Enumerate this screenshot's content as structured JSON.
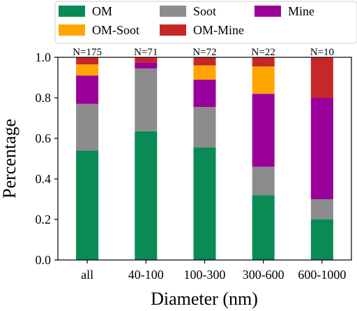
{
  "chart_data": {
    "type": "bar",
    "stacked": true,
    "title": "",
    "xlabel": "Diameter (nm)",
    "ylabel": "Percentage",
    "ylim": [
      0,
      1.0
    ],
    "yticks": [
      "0.0",
      "0.2",
      "0.4",
      "0.6",
      "0.8",
      "1.0"
    ],
    "grid": false,
    "legend_position": "top",
    "categories": [
      "all",
      "40-100",
      "100-300",
      "300-600",
      "600-1000"
    ],
    "counts": [
      "N=175",
      "N=71",
      "N=72",
      "N=22",
      "N=10"
    ],
    "series": [
      {
        "name": "OM",
        "color": "#0a8a55",
        "values": [
          0.54,
          0.635,
          0.555,
          0.32,
          0.2
        ]
      },
      {
        "name": "Soot",
        "color": "#8c8c8c",
        "values": [
          0.23,
          0.31,
          0.2,
          0.14,
          0.1
        ]
      },
      {
        "name": "Mine",
        "color": "#990099",
        "values": [
          0.14,
          0.03,
          0.135,
          0.36,
          0.5
        ]
      },
      {
        "name": "OM-Soot",
        "color": "#ffa500",
        "values": [
          0.055,
          0.0,
          0.07,
          0.135,
          0.0
        ]
      },
      {
        "name": "OM-Mine",
        "color": "#c62828",
        "values": [
          0.035,
          0.025,
          0.04,
          0.045,
          0.2
        ]
      }
    ]
  }
}
